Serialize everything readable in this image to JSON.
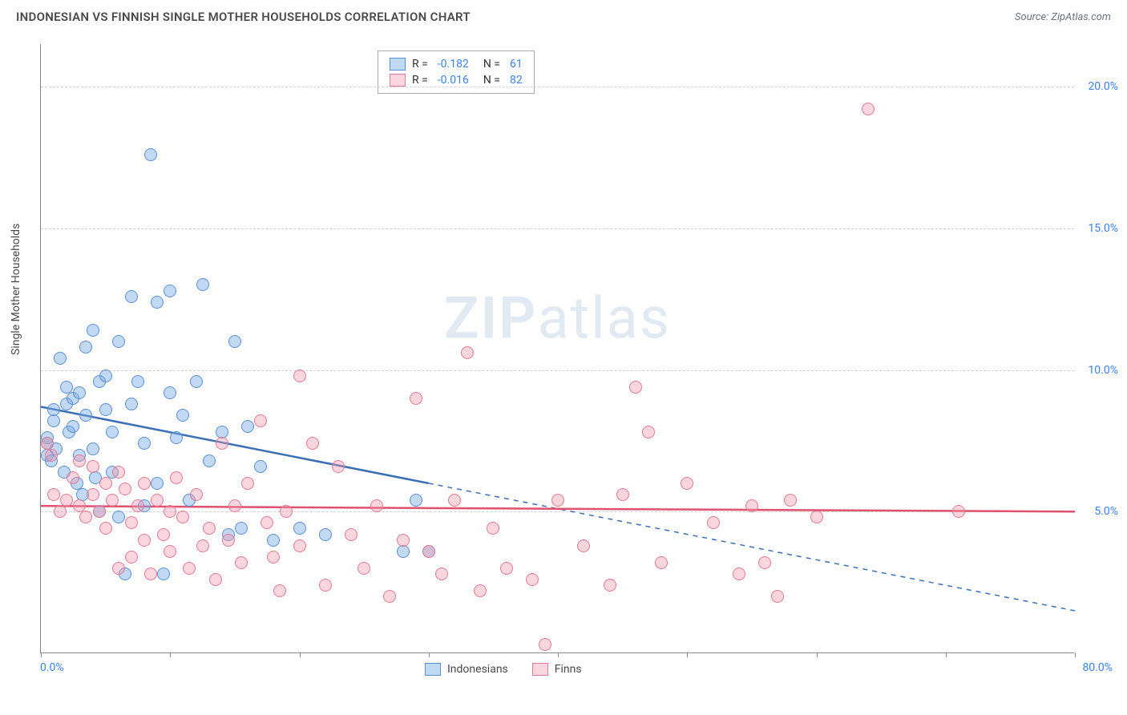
{
  "header": {
    "title": "INDONESIAN VS FINNISH SINGLE MOTHER HOUSEHOLDS CORRELATION CHART",
    "source": "Source: ZipAtlas.com"
  },
  "watermark": {
    "zip": "ZIP",
    "atlas": "atlas"
  },
  "y_axis": {
    "title": "Single Mother Households",
    "ticks": [
      {
        "value": 5.0,
        "label": "5.0%"
      },
      {
        "value": 10.0,
        "label": "10.0%"
      },
      {
        "value": 15.0,
        "label": "15.0%"
      },
      {
        "value": 20.0,
        "label": "20.0%"
      }
    ],
    "min": 0,
    "max": 21.5
  },
  "x_axis": {
    "min_label": "0.0%",
    "max_label": "80.0%",
    "min": 0,
    "max": 80,
    "ticks": [
      0,
      10,
      20,
      30,
      40,
      50,
      60,
      70,
      80
    ]
  },
  "series": [
    {
      "name": "Indonesians",
      "fill": "rgba(120,170,230,0.45)",
      "stroke": "#5a8fd4",
      "r_label": "R =",
      "r_value": "-0.182",
      "n_label": "N =",
      "n_value": "61",
      "trend": {
        "y_start": 8.7,
        "y_end": 1.5,
        "solid_until_x": 30,
        "color": "#3b6fb5"
      },
      "points": [
        [
          0.5,
          7.4
        ],
        [
          0.5,
          7.0
        ],
        [
          0.5,
          7.6
        ],
        [
          0.8,
          6.8
        ],
        [
          1.0,
          8.2
        ],
        [
          1.0,
          8.6
        ],
        [
          1.2,
          7.2
        ],
        [
          1.5,
          10.4
        ],
        [
          1.8,
          6.4
        ],
        [
          2.0,
          9.4
        ],
        [
          2.0,
          8.8
        ],
        [
          2.2,
          7.8
        ],
        [
          2.5,
          8.0
        ],
        [
          2.5,
          9.0
        ],
        [
          2.8,
          6.0
        ],
        [
          3.0,
          9.2
        ],
        [
          3.0,
          7.0
        ],
        [
          3.2,
          5.6
        ],
        [
          3.5,
          10.8
        ],
        [
          3.5,
          8.4
        ],
        [
          4.0,
          7.2
        ],
        [
          4.0,
          11.4
        ],
        [
          4.2,
          6.2
        ],
        [
          4.5,
          9.6
        ],
        [
          4.5,
          5.0
        ],
        [
          5.0,
          8.6
        ],
        [
          5.0,
          9.8
        ],
        [
          5.5,
          7.8
        ],
        [
          5.5,
          6.4
        ],
        [
          6.0,
          11.0
        ],
        [
          6.0,
          4.8
        ],
        [
          6.5,
          2.8
        ],
        [
          7.0,
          8.8
        ],
        [
          7.0,
          12.6
        ],
        [
          7.5,
          9.6
        ],
        [
          8.0,
          7.4
        ],
        [
          8.0,
          5.2
        ],
        [
          8.5,
          17.6
        ],
        [
          9.0,
          12.4
        ],
        [
          9.0,
          6.0
        ],
        [
          9.5,
          2.8
        ],
        [
          10.0,
          9.2
        ],
        [
          10.0,
          12.8
        ],
        [
          10.5,
          7.6
        ],
        [
          11.0,
          8.4
        ],
        [
          11.5,
          5.4
        ],
        [
          12.0,
          9.6
        ],
        [
          12.5,
          13.0
        ],
        [
          13.0,
          6.8
        ],
        [
          14.0,
          7.8
        ],
        [
          14.5,
          4.2
        ],
        [
          15.0,
          11.0
        ],
        [
          15.5,
          4.4
        ],
        [
          16.0,
          8.0
        ],
        [
          17.0,
          6.6
        ],
        [
          18.0,
          4.0
        ],
        [
          20.0,
          4.4
        ],
        [
          22.0,
          4.2
        ],
        [
          28.0,
          3.6
        ],
        [
          29.0,
          5.4
        ],
        [
          30.0,
          3.6
        ]
      ]
    },
    {
      "name": "Finns",
      "fill": "rgba(240,150,170,0.40)",
      "stroke": "#e07a95",
      "r_label": "R =",
      "r_value": "-0.016",
      "n_label": "N =",
      "n_value": "82",
      "trend": {
        "y_start": 5.2,
        "y_end": 5.0,
        "solid_until_x": 80,
        "color": "#e0506f"
      },
      "points": [
        [
          0.5,
          7.4
        ],
        [
          0.8,
          7.0
        ],
        [
          1.0,
          5.6
        ],
        [
          1.5,
          5.0
        ],
        [
          2.0,
          5.4
        ],
        [
          2.5,
          6.2
        ],
        [
          3.0,
          5.2
        ],
        [
          3.0,
          6.8
        ],
        [
          3.5,
          4.8
        ],
        [
          4.0,
          5.6
        ],
        [
          4.0,
          6.6
        ],
        [
          4.5,
          5.0
        ],
        [
          5.0,
          6.0
        ],
        [
          5.0,
          4.4
        ],
        [
          5.5,
          5.4
        ],
        [
          6.0,
          6.4
        ],
        [
          6.0,
          3.0
        ],
        [
          6.5,
          5.8
        ],
        [
          7.0,
          4.6
        ],
        [
          7.0,
          3.4
        ],
        [
          7.5,
          5.2
        ],
        [
          8.0,
          6.0
        ],
        [
          8.0,
          4.0
        ],
        [
          8.5,
          2.8
        ],
        [
          9.0,
          5.4
        ],
        [
          9.5,
          4.2
        ],
        [
          10.0,
          5.0
        ],
        [
          10.0,
          3.6
        ],
        [
          10.5,
          6.2
        ],
        [
          11.0,
          4.8
        ],
        [
          11.5,
          3.0
        ],
        [
          12.0,
          5.6
        ],
        [
          12.5,
          3.8
        ],
        [
          13.0,
          4.4
        ],
        [
          13.5,
          2.6
        ],
        [
          14.0,
          7.4
        ],
        [
          14.5,
          4.0
        ],
        [
          15.0,
          5.2
        ],
        [
          15.5,
          3.2
        ],
        [
          16.0,
          6.0
        ],
        [
          17.0,
          8.2
        ],
        [
          17.5,
          4.6
        ],
        [
          18.0,
          3.4
        ],
        [
          18.5,
          2.2
        ],
        [
          19.0,
          5.0
        ],
        [
          20.0,
          9.8
        ],
        [
          20.0,
          3.8
        ],
        [
          21.0,
          7.4
        ],
        [
          22.0,
          2.4
        ],
        [
          23.0,
          6.6
        ],
        [
          24.0,
          4.2
        ],
        [
          25.0,
          3.0
        ],
        [
          26.0,
          5.2
        ],
        [
          27.0,
          2.0
        ],
        [
          28.0,
          4.0
        ],
        [
          29.0,
          9.0
        ],
        [
          30.0,
          3.6
        ],
        [
          31.0,
          2.8
        ],
        [
          32.0,
          5.4
        ],
        [
          33.0,
          10.6
        ],
        [
          34.0,
          2.2
        ],
        [
          35.0,
          4.4
        ],
        [
          36.0,
          3.0
        ],
        [
          38.0,
          2.6
        ],
        [
          39.0,
          0.3
        ],
        [
          40.0,
          5.4
        ],
        [
          42.0,
          3.8
        ],
        [
          44.0,
          2.4
        ],
        [
          45.0,
          5.6
        ],
        [
          46.0,
          9.4
        ],
        [
          47.0,
          7.8
        ],
        [
          48.0,
          3.2
        ],
        [
          50.0,
          6.0
        ],
        [
          52.0,
          4.6
        ],
        [
          54.0,
          2.8
        ],
        [
          55.0,
          5.2
        ],
        [
          56.0,
          3.2
        ],
        [
          57.0,
          2.0
        ],
        [
          58.0,
          5.4
        ],
        [
          60.0,
          4.8
        ],
        [
          64.0,
          19.2
        ],
        [
          71.0,
          5.0
        ]
      ]
    }
  ],
  "bottom_legend": [
    {
      "label": "Indonesians",
      "fill": "rgba(120,170,230,0.45)",
      "stroke": "#5a8fd4"
    },
    {
      "label": "Finns",
      "fill": "rgba(240,150,170,0.40)",
      "stroke": "#e07a95"
    }
  ]
}
